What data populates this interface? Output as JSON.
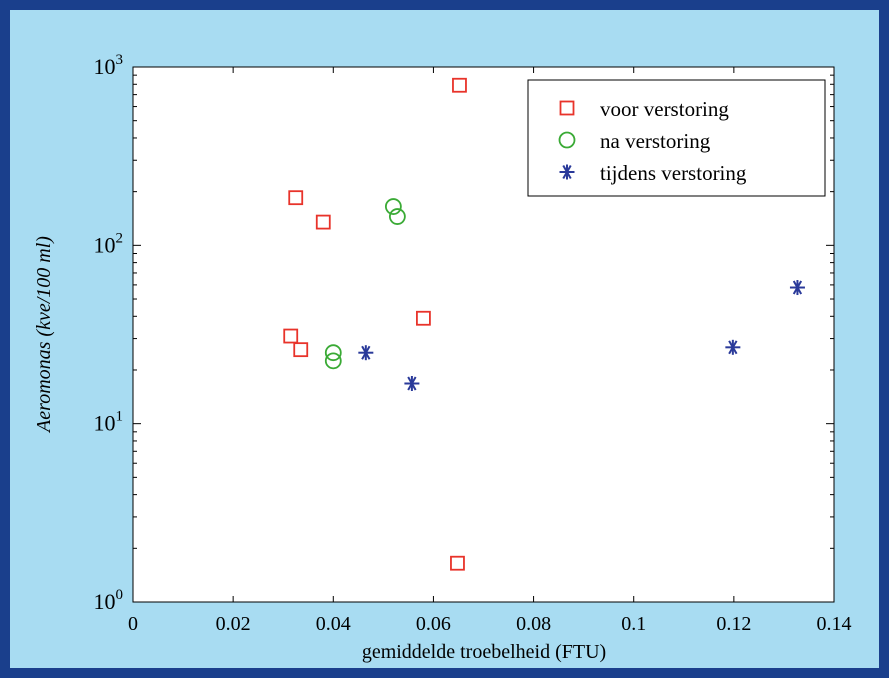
{
  "chart_data": {
    "type": "scatter",
    "title": "",
    "xlabel": "gemiddelde troebelheid (FTU)",
    "ylabel": "Aeromonas (kve/100 ml)",
    "xlim": [
      0,
      0.14
    ],
    "ylim": [
      1,
      1000
    ],
    "yscale": "log",
    "grid": false,
    "legend_position": "top-right",
    "x_ticks": [
      "0",
      "0.02",
      "0.04",
      "0.06",
      "0.08",
      "0.1",
      "0.12",
      "0.14"
    ],
    "x_tick_values": [
      0,
      0.02,
      0.04,
      0.06,
      0.08,
      0.1,
      0.12,
      0.14
    ],
    "y_ticks": [
      {
        "base": "10",
        "exp": "0",
        "value": 1
      },
      {
        "base": "10",
        "exp": "1",
        "value": 10
      },
      {
        "base": "10",
        "exp": "2",
        "value": 100
      },
      {
        "base": "10",
        "exp": "3",
        "value": 1000
      }
    ],
    "series": [
      {
        "name": "voor verstoring",
        "marker": "square",
        "color": "#e8332a",
        "points": [
          {
            "x": 0.0652,
            "y": 790
          },
          {
            "x": 0.0325,
            "y": 185
          },
          {
            "x": 0.038,
            "y": 135
          },
          {
            "x": 0.058,
            "y": 39
          },
          {
            "x": 0.0315,
            "y": 31
          },
          {
            "x": 0.0335,
            "y": 26
          },
          {
            "x": 0.0648,
            "y": 1.65
          }
        ]
      },
      {
        "name": "na verstoring",
        "marker": "circle",
        "color": "#3aaa35",
        "points": [
          {
            "x": 0.052,
            "y": 165
          },
          {
            "x": 0.0528,
            "y": 145
          },
          {
            "x": 0.04,
            "y": 25
          },
          {
            "x": 0.04,
            "y": 22.5
          }
        ]
      },
      {
        "name": "tijdens verstoring",
        "marker": "star",
        "color": "#2a3a9a",
        "points": [
          {
            "x": 0.0465,
            "y": 25
          },
          {
            "x": 0.0557,
            "y": 16.8
          },
          {
            "x": 0.1198,
            "y": 26.8
          },
          {
            "x": 0.1327,
            "y": 58
          }
        ]
      }
    ]
  }
}
